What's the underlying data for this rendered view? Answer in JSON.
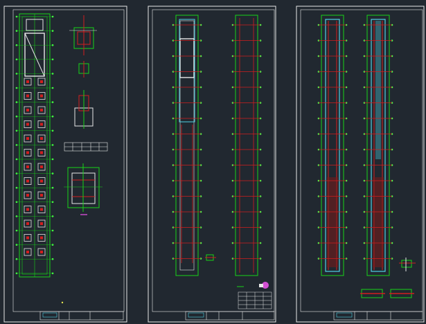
{
  "colors": {
    "background": "#212830",
    "sheet_border": "#e8e8e8",
    "grid_green": "#17d417",
    "column_red": "#d21e1e",
    "beam_cyan": "#4fd3e6",
    "node_green": "#4cff4c",
    "text_white": "#dcdcdc",
    "accent_magenta": "#d24fd2",
    "accent_yellow": "#e6e64f"
  },
  "sheets": [
    {
      "name": "sheet-foundation",
      "title_block_text": ""
    },
    {
      "name": "sheet-floor-plan",
      "title_block_text": ""
    },
    {
      "name": "sheet-roof-plan",
      "title_block_text": ""
    }
  ],
  "icons": [
    "title-block-icon",
    "legend-table-icon",
    "north-arrow-icon"
  ]
}
